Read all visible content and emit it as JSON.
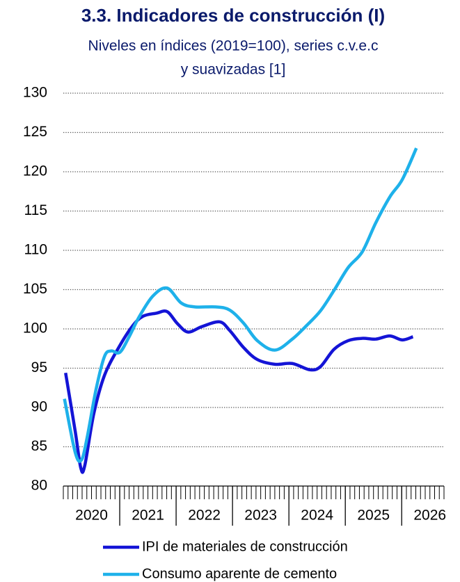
{
  "chart_data": {
    "type": "line",
    "title": "3.3. Indicadores de construcción (I)",
    "subtitle": [
      "Niveles en índices (2019=100), series c.v.e.c",
      "y suavizadas [1]"
    ],
    "xlim": [
      2020,
      2026.75
    ],
    "xticks": [
      {
        "value": 2020.5,
        "label": "2020"
      },
      {
        "value": 2021.5,
        "label": "2021"
      },
      {
        "value": 2022.5,
        "label": "2022"
      },
      {
        "value": 2023.5,
        "label": "2023"
      },
      {
        "value": 2024.5,
        "label": "2024"
      },
      {
        "value": 2025.5,
        "label": "2025"
      },
      {
        "value": 2026.5,
        "label": "2026"
      }
    ],
    "ylim": [
      80,
      130
    ],
    "yticks": [
      80,
      85,
      90,
      95,
      100,
      105,
      110,
      115,
      120,
      125,
      130
    ],
    "grid": true,
    "legend": "bottom",
    "series": [
      {
        "name": "IPI de materiales de construcción",
        "color": "#1414d6",
        "x": [
          2020.04,
          2020.21,
          2020.31,
          2020.38,
          2020.54,
          2020.73,
          2020.98,
          2021.22,
          2021.41,
          2021.65,
          2021.84,
          2022.02,
          2022.21,
          2022.46,
          2022.77,
          2022.95,
          2023.2,
          2023.44,
          2023.75,
          2024.06,
          2024.37,
          2024.56,
          2024.8,
          2025.05,
          2025.3,
          2025.54,
          2025.79,
          2026.01,
          2026.2
        ],
        "values": [
          94.4,
          87.0,
          82.3,
          82.6,
          89.2,
          94.1,
          97.6,
          100.3,
          101.6,
          102.0,
          102.2,
          100.7,
          99.6,
          100.3,
          100.9,
          99.8,
          97.6,
          96.1,
          95.5,
          95.6,
          94.8,
          95.2,
          97.4,
          98.5,
          98.8,
          98.7,
          99.1,
          98.6,
          99.0
        ]
      },
      {
        "name": "Consumo aparente de cemento",
        "color": "#1eb1ea",
        "x": [
          2020.02,
          2020.21,
          2020.32,
          2020.42,
          2020.58,
          2020.73,
          2020.85,
          2021.0,
          2021.16,
          2021.35,
          2021.59,
          2021.84,
          2022.09,
          2022.33,
          2022.7,
          2022.95,
          2023.2,
          2023.44,
          2023.75,
          2024.06,
          2024.31,
          2024.56,
          2024.8,
          2025.05,
          2025.3,
          2025.54,
          2025.79,
          2026.01,
          2026.26
        ],
        "values": [
          91.1,
          84.3,
          83.3,
          86.1,
          92.3,
          96.5,
          97.2,
          97.0,
          98.9,
          101.6,
          104.2,
          105.2,
          103.3,
          102.8,
          102.8,
          102.4,
          100.7,
          98.5,
          97.3,
          98.7,
          100.4,
          102.3,
          104.9,
          107.8,
          109.8,
          113.5,
          116.8,
          119.0,
          123.0
        ]
      }
    ]
  }
}
